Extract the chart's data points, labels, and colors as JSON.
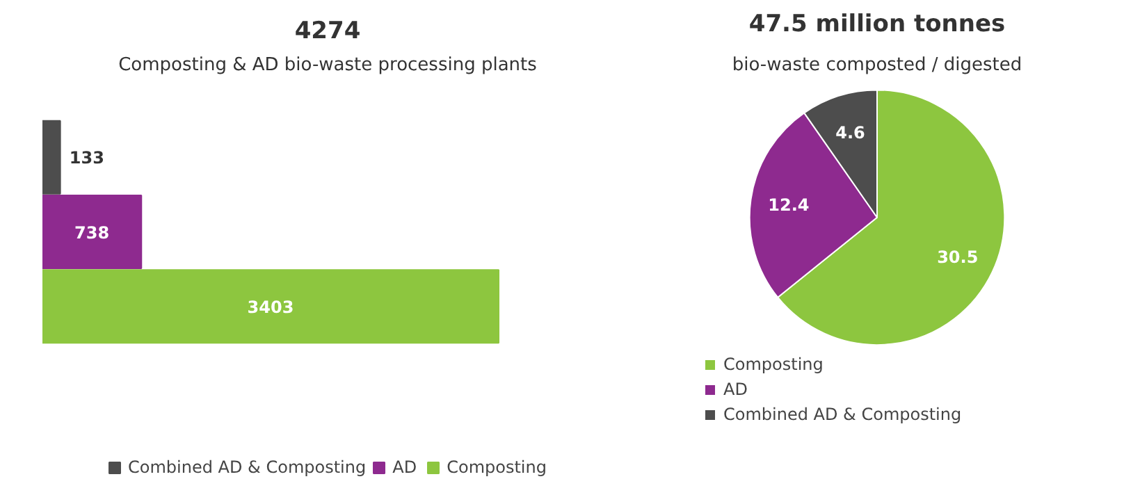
{
  "chart_data": [
    {
      "type": "bar",
      "orientation": "horizontal",
      "title": "4274",
      "subtitle": "Composting & AD bio-waste processing plants",
      "categories": [
        null
      ],
      "series": [
        {
          "name": "Combined AD & Composting",
          "color": "#4d4d4d",
          "values": [
            133
          ]
        },
        {
          "name": "AD",
          "color": "#8e2a8f",
          "values": [
            738
          ]
        },
        {
          "name": "Composting",
          "color": "#8dc63f",
          "values": [
            3403
          ]
        }
      ],
      "data_labels": true,
      "legend": "bottom",
      "tick_labels": false,
      "grid": false
    },
    {
      "type": "pie",
      "title": "47.5 million tonnes",
      "subtitle": "bio-waste composted / digested",
      "categories": [
        "Composting",
        "AD",
        "Combined AD & Composting"
      ],
      "values": [
        30.5,
        12.4,
        4.6
      ],
      "colors": [
        "#8dc63f",
        "#8e2a8f",
        "#4d4d4d"
      ],
      "data_labels": true,
      "legend": "bottom left"
    }
  ]
}
